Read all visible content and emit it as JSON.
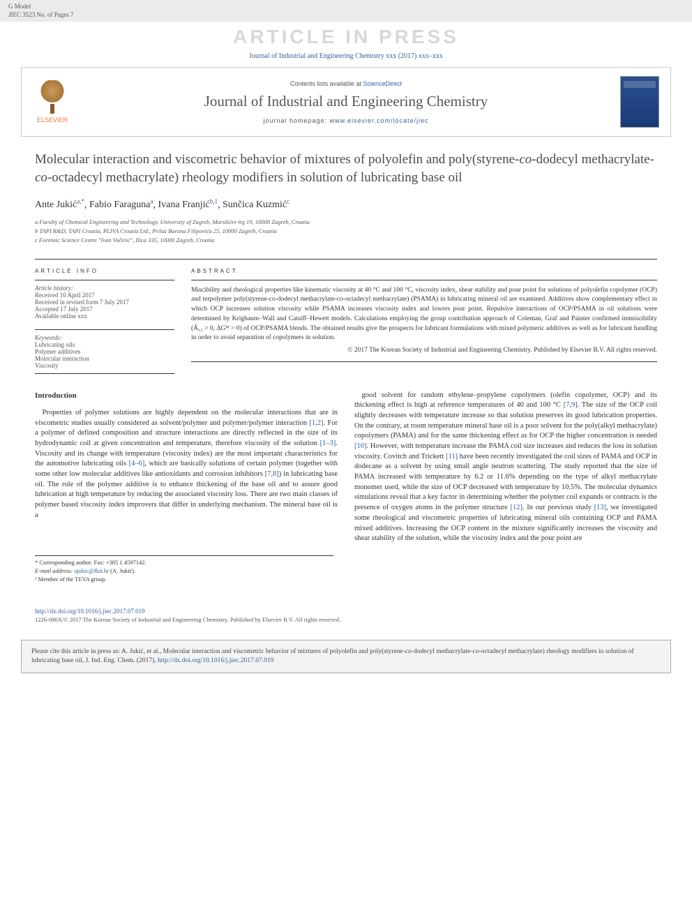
{
  "header_bar": {
    "line1": "G Model",
    "line2": "JIEC 3523 No. of Pages 7"
  },
  "watermark": "ARTICLE IN PRESS",
  "top_citation": "Journal of Industrial and Engineering Chemistry xxx (2017) xxx–xxx",
  "journal_header": {
    "publisher": "ELSEVIER",
    "contents_prefix": "Contents lists available at ",
    "contents_link": "ScienceDirect",
    "journal_name": "Journal of Industrial and Engineering Chemistry",
    "homepage_prefix": "journal homepage: ",
    "homepage_link": "www.elsevier.com/locate/jiec"
  },
  "title_parts": {
    "p1": "Molecular interaction and viscometric behavior of mixtures of polyolefin and poly(styrene-",
    "co1": "co",
    "p2": "-dodecyl methacrylate-",
    "co2": "co",
    "p3": "-octadecyl methacrylate) rheology modifiers in solution of lubricating base oil"
  },
  "authors": [
    {
      "name": "Ante Jukić",
      "sup": "a,*"
    },
    {
      "name": "Fabio Faraguna",
      "sup": "a"
    },
    {
      "name": "Ivana Franjić",
      "sup": "b,1"
    },
    {
      "name": "Sunčica Kuzmić",
      "sup": "c"
    }
  ],
  "affiliations": [
    "a Faculty of Chemical Engineering and Technology, University of Zagreb, Marulićev trg 19, 10000 Zagreb, Croatia",
    "b TAPI R&D, TAPI Croatia, PLIVA Croatia Ltd., Prilaz Baruna Filipovića 25, 10000 Zagreb, Croatia",
    "c Forensic Science Centre \"Ivan Vučetić\", Ilica 335, 10000 Zagreb, Croatia"
  ],
  "article_info": {
    "heading": "ARTICLE INFO",
    "history_label": "Article history:",
    "history": [
      "Received 10 April 2017",
      "Received in revised form 7 July 2017",
      "Accepted 17 July 2017",
      "Available online xxx"
    ],
    "keywords_label": "Keywords:",
    "keywords": [
      "Lubricating oils",
      "Polymer additives",
      "Molecular interaction",
      "Viscosity"
    ]
  },
  "abstract": {
    "heading": "ABSTRACT",
    "text": "Miscibility and rheological properties like kinematic viscosity at 40 °C and 100 °C, viscosity index, shear stability and pour point for solutions of polyolefin copolymer (OCP) and terpolymer poly(styrene-co-dodecyl methacrylate-co-octadecyl methacrylate) (PSAMA) in lubricating mineral oil are examined. Additives show complementary effect in which OCP increases solution viscosity while PSAMA increases viscosity index and lowers pour point. Repulsive interactions of OCP/PSAMA in oil solutions were determined by Krigbaum–Wall and Catsiff–Hewett models. Calculations employing the group contribution approach of Coleman, Graf and Painter confirmed immiscibility (Ã₁₂ > 0, ΔGᴹ > 0) of OCP/PSAMA blends. The obtained results give the prospects for lubricant formulations with mixed polymeric additives as well as for lubricant handling in order to avoid separation of copolymers in solution.",
    "copyright": "© 2017 The Korean Society of Industrial and Engineering Chemistry. Published by Elsevier B.V. All rights reserved."
  },
  "intro": {
    "heading": "Introduction",
    "col1": "Properties of polymer solutions are highly dependent on the molecular interactions that are in viscometric studies usually considered as solvent/polymer and polymer/polymer interaction [1,2]. For a polymer of defined composition and structure interactions are directly reflected in the size of its hydrodynamic coil at given concentration and temperature, therefore viscosity of the solution [1–3]. Viscosity and its change with temperature (viscosity index) are the most important characteristics for the automotive lubricating oils [4–6], which are basically solutions of certain polymer (together with some other low molecular additives like antioxidants and corrosion inhibitors [7,8]) in lubricating base oil. The role of the polymer additive is to enhance thickening of the base oil and to assure good lubrication at high temperature by reducing the associated viscosity loss. There are two main classes of polymer based viscosity index improvers that differ in underlying mechanism. The mineral base oil is a",
    "col2": "good solvent for random ethylene–propylene copolymers (olefin copolymer, OCP) and its thickening effect is high at reference temperatures of 40 and 100 °C [7,9]. The size of the OCP coil slightly decreases with temperature increase so that solution preserves its good lubrication properties. On the contrary, at room temperature mineral base oil is a poor solvent for the poly(alkyl methacrylate) copolymers (PAMA) and for the same thickening effect as for OCP the higher concentration is needed [10]. However, with temperature increase the PAMA coil size increases and reduces the loss in solution viscosity. Covitch and Trickett [11] have been recently investigated the coil sizes of PAMA and OCP in dodecane as a solvent by using small angle neutron scattering. The study reported that the size of PAMA increased with temperature by 6.2 or 11.6% depending on the type of alkyl methacrylate monomer used, while the size of OCP decreased with temperature by 10.5%. The molecular dynamics simulations reveal that a key factor in determining whether the polymer coil expands or contracts is the presence of oxygen atoms in the polymer structure [12]. In our previous study [13], we investigated some rheological and viscometric properties of lubricating mineral oils containing OCP and PAMA mixed additives. Increasing the OCP content in the mixture significantly increases the viscosity and shear stability of the solution, while the viscosity index and the pour point are",
    "refs": {
      "r1": "[1,2]",
      "r2": "[1–3]",
      "r3": "[4–6]",
      "r4": "[7,8]",
      "r5": "[7,9]",
      "r6": "[10]",
      "r7": "[11]",
      "r8": "[12]",
      "r9": "[13]"
    }
  },
  "footnotes": {
    "corr": "* Corresponding author. Fax: +385 1 4597142.",
    "email_label": "E-mail address: ",
    "email": "ajukic@fkit.hr",
    "email_suffix": " (A. Jukić).",
    "note1": "¹ Member of the TEVA group."
  },
  "doi": {
    "url": "http://dx.doi.org/10.1016/j.jiec.2017.07.019",
    "issn": "1226-086X/© 2017 The Korean Society of Industrial and Engineering Chemistry. Published by Elsevier B.V. All rights reserved."
  },
  "citation_box": {
    "prefix": "Please cite this article in press as: A. Jukić, et al., Molecular interaction and viscometric behavior of mixtures of polyolefin and poly(styrene-",
    "co1": "co",
    "mid": "-dodecyl methacrylate-",
    "co2": "co",
    "suffix": "-octadecyl methacrylate) rheology modifiers in solution of lubricating base oil, J. Ind. Eng. Chem. (2017), ",
    "link": "http://dx.doi.org/10.1016/j.jiec.2017.07.019"
  },
  "colors": {
    "link": "#2e5f9b",
    "watermark": "#d8d8d8",
    "text": "#333333",
    "muted": "#555555"
  }
}
